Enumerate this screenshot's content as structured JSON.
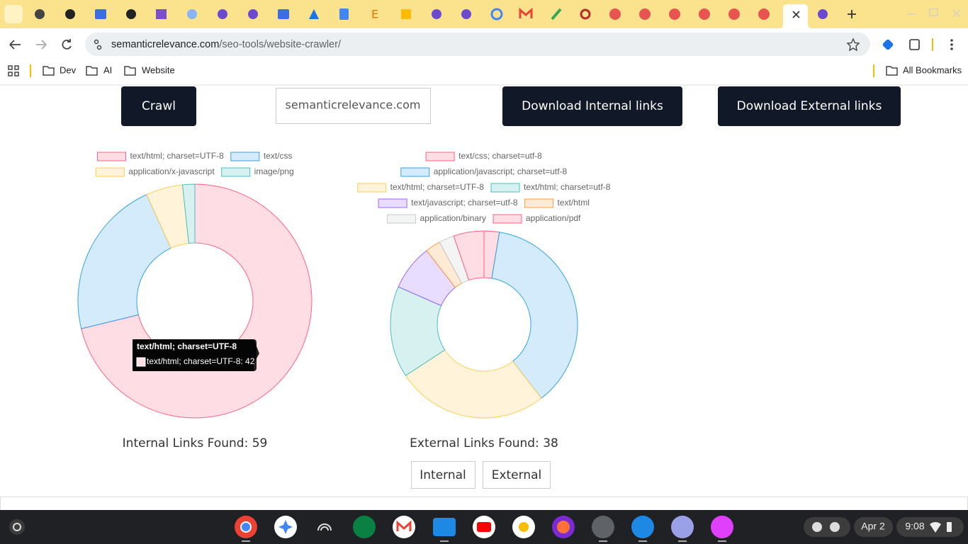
{
  "browser": {
    "url_host": "semanticrelevance.com",
    "url_path": "/seo-tools/website-crawler/",
    "bookmarks": [
      "Dev",
      "AI",
      "Website"
    ],
    "all_bookmarks": "All Bookmarks"
  },
  "toolbar": {
    "crawl": "Crawl",
    "domain_input": "semanticrelevance.com",
    "download_internal": "Download Internal links",
    "download_external": "Download External links"
  },
  "chart_data": [
    {
      "type": "doughnut",
      "caption": "Internal Links Found: 59",
      "categories": [
        "text/html; charset=UTF-8",
        "text/css",
        "application/x-javascript",
        "image/png"
      ],
      "values": [
        42,
        13,
        3,
        1
      ],
      "colors": [
        "#ff6384",
        "#36a2eb",
        "#ffce56",
        "#4bc0c0"
      ]
    },
    {
      "type": "doughnut",
      "caption": "External Links Found: 38",
      "categories": [
        "text/css; charset=utf-8",
        "application/javascript; charset=utf-8",
        "text/html; charset=UTF-8",
        "text/html; charset=utf-8",
        "text/javascript; charset=utf-8",
        "text/html",
        "application/binary",
        "application/pdf"
      ],
      "values": [
        1,
        14,
        10,
        6,
        3,
        1,
        1,
        2
      ],
      "colors": [
        "#ff6384",
        "#36a2eb",
        "#ffce56",
        "#4bc0c0",
        "#9966ff",
        "#ff9f40",
        "#c9cbcf",
        "#ff6384"
      ]
    }
  ],
  "tooltip": {
    "title": "text/html; charset=UTF-8",
    "body": "text/html; charset=UTF-8: 42"
  },
  "view_buttons": [
    "Internal",
    "External"
  ],
  "taskbar": {
    "date": "Apr 2",
    "time": "9:08"
  }
}
